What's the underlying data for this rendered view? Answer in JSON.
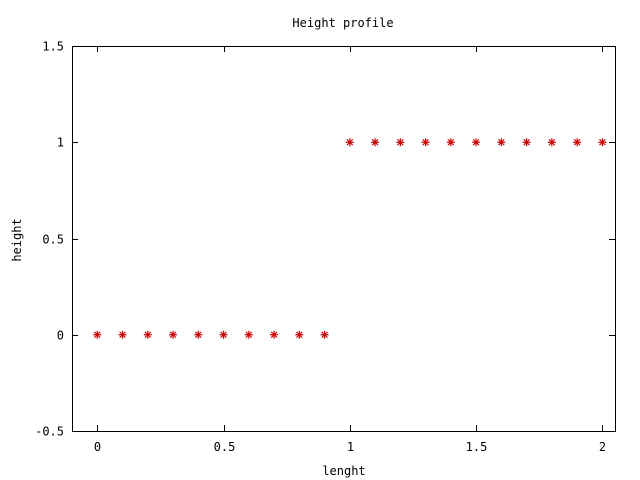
{
  "chart_data": {
    "type": "scatter",
    "title": "Height profile",
    "xlabel": "lenght",
    "ylabel": "height",
    "xlim": [
      -0.1,
      2.05
    ],
    "ylim": [
      -0.5,
      1.5
    ],
    "xticks": [
      0,
      0.5,
      1,
      1.5,
      2
    ],
    "xtick_labels": [
      "0",
      "0.5",
      "1",
      "1.5",
      "2"
    ],
    "yticks": [
      -0.5,
      0,
      0.5,
      1,
      1.5
    ],
    "ytick_labels": [
      "-0.5",
      "0",
      "0.5",
      "1",
      "1.5"
    ],
    "grid": false,
    "marker": "*",
    "series": [
      {
        "color": "#cc0000",
        "x": [
          0,
          0.1,
          0.2,
          0.3,
          0.4,
          0.5,
          0.6,
          0.7,
          0.8,
          0.9,
          1.0,
          1.1,
          1.2,
          1.3,
          1.4,
          1.5,
          1.6,
          1.7,
          1.8,
          1.9,
          2.0
        ],
        "y": [
          0,
          0,
          0,
          0,
          0,
          0,
          0,
          0,
          0,
          0,
          1,
          1,
          1,
          1,
          1,
          1,
          1,
          1,
          1,
          1,
          1
        ]
      }
    ]
  }
}
